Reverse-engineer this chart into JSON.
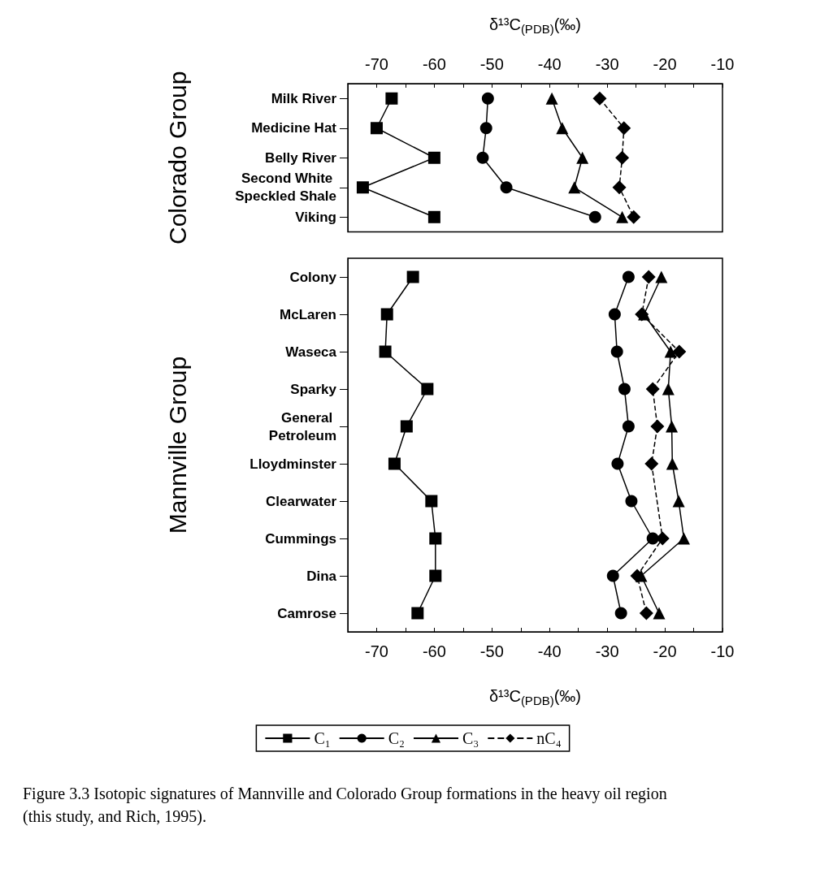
{
  "chart_data": [
    {
      "type": "line",
      "ylabel": "Colorado Group",
      "x2label": "δ¹³C$_{(PDB)}$(‰)",
      "x2lim": [
        -75,
        -10
      ],
      "orientation": "horizontal",
      "x2ticks": [
        -70,
        {
          "value": -65,
          "label": null
        },
        -60,
        {
          "value": -55,
          "label": null
        },
        -50,
        {
          "value": -45,
          "label": null
        },
        -40,
        {
          "value": -35,
          "label": null
        },
        -30,
        {
          "value": -25,
          "label": null
        },
        -20,
        {
          "value": -15,
          "label": null
        },
        -10
      ],
      "categories": [
        "Milk River",
        "Medicine Hat",
        "Belly River",
        "Second White Speckled Shale",
        "Viking"
      ],
      "grid": false,
      "legend": false,
      "series": [
        {
          "color": "#000000",
          "axis": "x2",
          "marker": "square",
          "line_style": "solid",
          "values": [
            -67.4,
            -70,
            -60,
            -72.4,
            -60
          ]
        },
        {
          "color": "#000000",
          "axis": "x2",
          "marker": "circle",
          "line_style": "solid",
          "values": [
            -50.7,
            -51,
            -51.6,
            -47.5,
            -32.1
          ]
        },
        {
          "color": "#000000",
          "axis": "x2",
          "marker": "triangle",
          "line_style": "solid",
          "values": [
            -39.6,
            -37.8,
            -34.3,
            -35.7,
            -27.4
          ]
        },
        {
          "color": "#000000",
          "axis": "x2",
          "marker": "diamond",
          "line_style": "dashed",
          "values": [
            -31.3,
            -27.1,
            -27.4,
            -27.9,
            -25.4
          ]
        }
      ]
    },
    {
      "type": "line",
      "ylabel": "Mannville Group",
      "xlabel": "δ¹³C$_{(PDB)}$(‰)",
      "xlim": [
        -75,
        -10
      ],
      "orientation": "horizontal",
      "xticks": [
        -70,
        {
          "value": -65,
          "label": null
        },
        -60,
        {
          "value": -55,
          "label": null
        },
        -50,
        {
          "value": -45,
          "label": null
        },
        -40,
        {
          "value": -35,
          "label": null
        },
        -30,
        {
          "value": -25,
          "label": null
        },
        -20,
        {
          "value": -15,
          "label": null
        },
        -10
      ],
      "categories": [
        "Colony",
        "McLaren",
        "Waseca",
        "Sparky",
        "General Petroleum",
        "Lloydminster",
        "Clearwater",
        "Cummings",
        "Dina",
        "Camrose"
      ],
      "grid": false,
      "legend": "bottom",
      "annotations": [
        "Figure 3.3 Isotopic signatures of Mannville and Colorado Group formations in the heavy oil region (this study, and Rich, 1995)."
      ],
      "series": [
        {
          "name": "C₁",
          "color": "#000000",
          "marker": "square",
          "line_style": "solid",
          "values": [
            -63.7,
            -68.2,
            -68.5,
            -61.2,
            -64.8,
            -66.9,
            -60.5,
            -59.8,
            -59.8,
            -62.9
          ]
        },
        {
          "name": "C₂",
          "color": "#000000",
          "marker": "circle",
          "line_style": "solid",
          "values": [
            -26.3,
            -28.7,
            -28.3,
            -27,
            -26.3,
            -28.2,
            -25.8,
            -22.1,
            -29,
            -27.6
          ]
        },
        {
          "name": "C₃",
          "color": "#000000",
          "marker": "triangle",
          "line_style": "solid",
          "values": [
            -20.6,
            -23.6,
            -19,
            -19.4,
            -18.8,
            -18.7,
            -17.6,
            -16.7,
            -24.1,
            -21
          ]
        },
        {
          "name": "nC₄",
          "color": "#000000",
          "marker": "diamond",
          "line_style": "dashed",
          "values": [
            -22.8,
            -24,
            -17.5,
            -22.1,
            -21.3,
            -22.3,
            null,
            -20.4,
            -24.8,
            -23.2
          ]
        }
      ]
    }
  ]
}
